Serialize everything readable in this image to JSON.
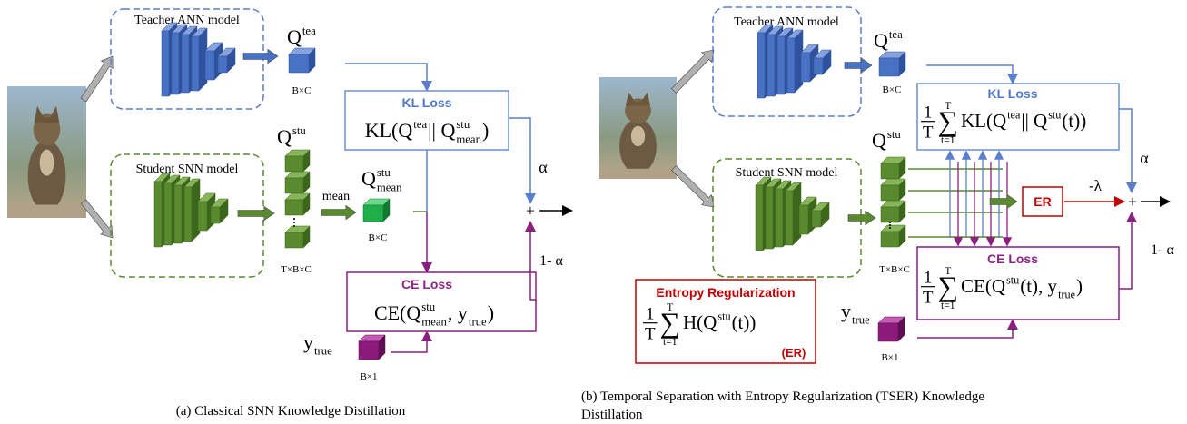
{
  "panel_a": {
    "teacher_label": "Teacher ANN model",
    "q_tea": [
      {
        "t": "Q"
      },
      {
        "sup": "tea"
      }
    ],
    "q_tea_shape": "B×C",
    "kl_title": "KL Loss",
    "kl_formula": [
      {
        "t": "KL(Q"
      },
      {
        "sup": "tea"
      },
      {
        "t": " || Q"
      },
      {
        "sup": "stu",
        "sub": "mean"
      },
      {
        "t": ")"
      }
    ],
    "q_stu": [
      {
        "t": "Q"
      },
      {
        "sup": "stu"
      }
    ],
    "student_label": "Student SNN model",
    "q_stu_shape": "T×B×C",
    "mean": "mean",
    "q_mean": [
      {
        "t": "Q"
      },
      {
        "sup": "stu",
        "sub": "mean"
      }
    ],
    "q_mean_shape": "B×C",
    "alpha": "α",
    "plus": "+",
    "one_minus_alpha": "1- α",
    "ce_title": "CE Loss",
    "ce_formula": [
      {
        "t": "CE(Q"
      },
      {
        "sup": "stu",
        "sub": "mean"
      },
      {
        "t": " , y"
      },
      {
        "sub": "true"
      },
      {
        "t": ")"
      }
    ],
    "y_true": [
      {
        "t": "y"
      },
      {
        "sub": "true"
      }
    ],
    "y_shape": "B×1",
    "caption": "(a) Classical SNN Knowledge Distillation"
  },
  "panel_b": {
    "teacher_label": "Teacher ANN model",
    "q_tea": [
      {
        "t": "Q"
      },
      {
        "sup": "tea"
      }
    ],
    "q_tea_shape": "B×C",
    "kl_title": "KL Loss",
    "kl_formula": [
      {
        "frac": [
          "1",
          "T"
        ]
      },
      {
        "sum": "∑",
        "top": "T",
        "bottom": "t=1"
      },
      {
        "t": "KL(Q"
      },
      {
        "sup": "tea"
      },
      {
        "t": " || Q"
      },
      {
        "sup": "stu"
      },
      {
        "t": "(t))"
      }
    ],
    "q_stu": [
      {
        "t": "Q"
      },
      {
        "sup": "stu"
      }
    ],
    "student_label": "Student SNN model",
    "q_stu_shape": "T×B×C",
    "er_box": "ER",
    "minus_lambda": "-λ",
    "alpha": "α",
    "plus": "+",
    "one_minus_alpha": "1- α",
    "ce_title": "CE Loss",
    "ce_formula": [
      {
        "frac": [
          "1",
          "T"
        ]
      },
      {
        "sum": "∑",
        "top": "T",
        "bottom": "t=1"
      },
      {
        "t": "CE(Q"
      },
      {
        "sup": "stu"
      },
      {
        "t": "(t), y"
      },
      {
        "sub": "true"
      },
      {
        "t": ")"
      }
    ],
    "er_title": "Entropy Regularization",
    "er_formula": [
      {
        "frac": [
          "1",
          "T"
        ]
      },
      {
        "sum": "∑",
        "top": "T",
        "bottom": "t=1"
      },
      {
        "t": "H(Q"
      },
      {
        "sup": "stu"
      },
      {
        "t": "(t))"
      }
    ],
    "er_tag": "(ER)",
    "y_true": [
      {
        "t": "y"
      },
      {
        "sub": "true"
      }
    ],
    "y_shape": "B×1",
    "caption": [
      "(b) Temporal Separation with Entropy Regularization (TSER) Knowledge",
      "Distillation"
    ]
  }
}
